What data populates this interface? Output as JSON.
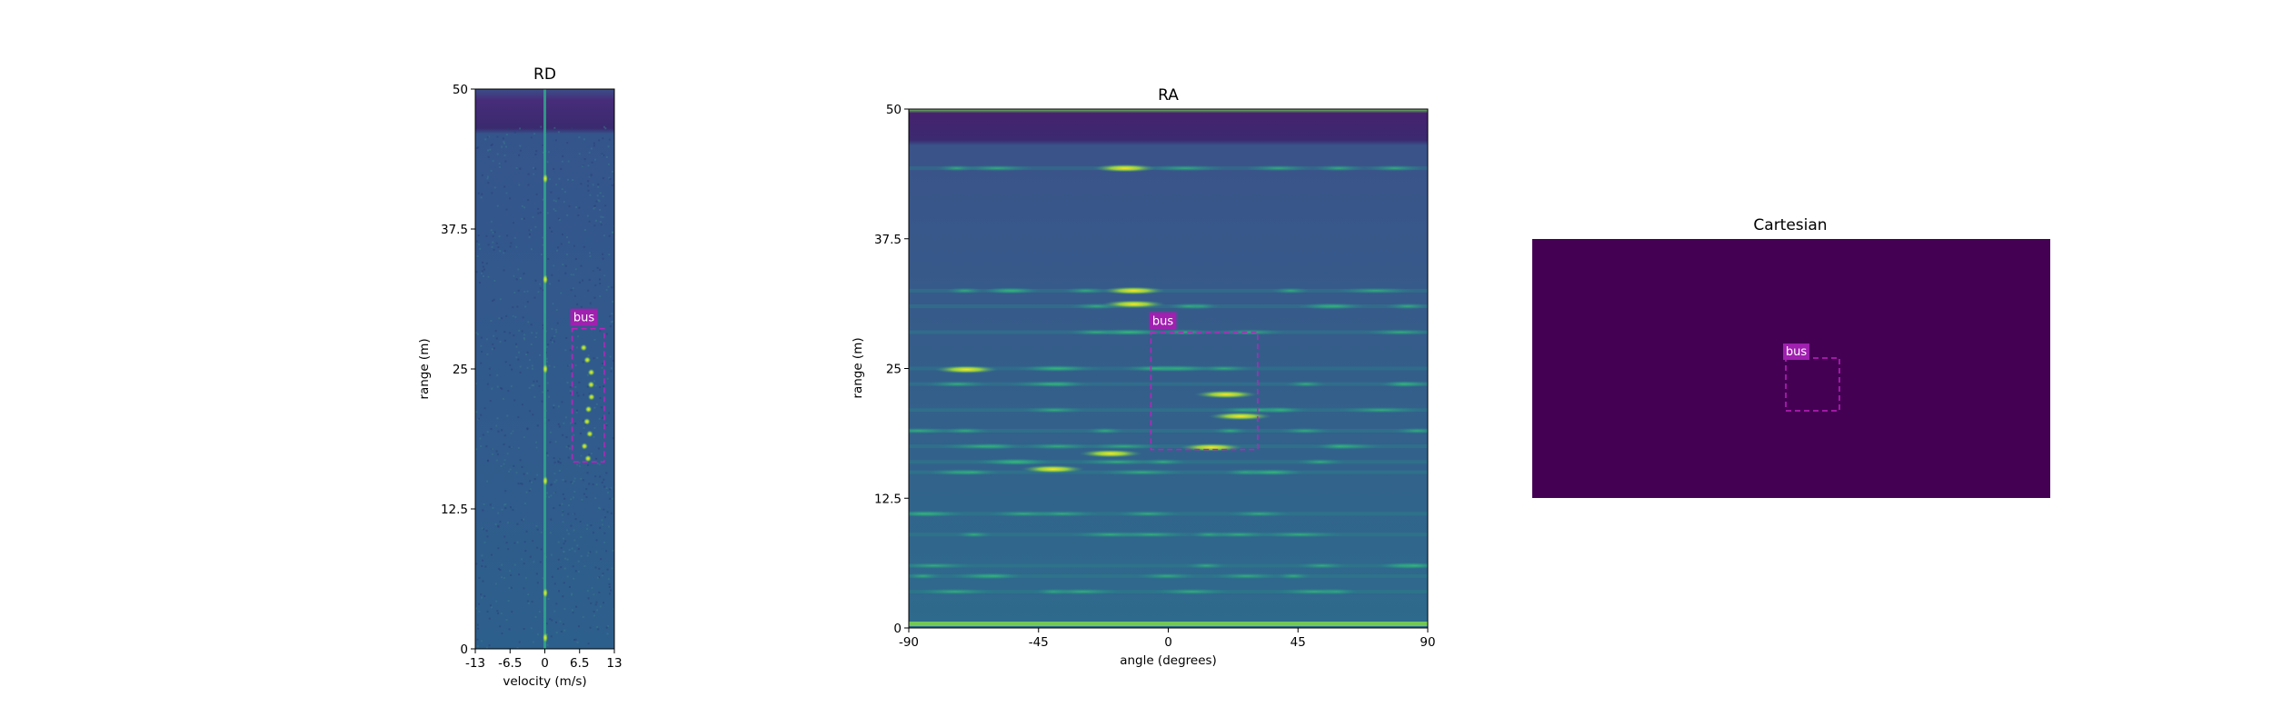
{
  "chart_data": [
    {
      "type": "heatmap",
      "title": "RD",
      "xlabel": "velocity (m/s)",
      "ylabel": "range (m)",
      "xlim": [
        -13,
        13
      ],
      "ylim": [
        0,
        50
      ],
      "xticks": [
        "-13",
        "-6.5",
        "0",
        "6.5",
        "13"
      ],
      "yticks": [
        "0",
        "12.5",
        "25",
        "37.5",
        "50"
      ],
      "annotations": [
        {
          "label": "bus",
          "x0": 5.1,
          "x1": 11.1,
          "y0": 16.7,
          "y1": 28.6
        }
      ]
    },
    {
      "type": "heatmap",
      "title": "RA",
      "xlabel": "angle (degrees)",
      "ylabel": "range (m)",
      "xlim": [
        -90,
        90
      ],
      "ylim": [
        0,
        50
      ],
      "xticks": [
        "-90",
        "-45",
        "0",
        "45",
        "90"
      ],
      "yticks": [
        "0",
        "12.5",
        "25",
        "37.5",
        "50"
      ],
      "annotations": [
        {
          "label": "bus",
          "x0": -6,
          "x1": 31,
          "y0": 17.2,
          "y1": 28.5
        }
      ]
    },
    {
      "type": "heatmap",
      "title": "Cartesian",
      "xlabel": "",
      "ylabel": "",
      "annotations": [
        {
          "label": "bus"
        }
      ]
    }
  ],
  "colors": {
    "viridis_dark": "#440154",
    "field_blue": "#30588c",
    "annotation_magenta": "#c020c0",
    "label_bg": "#a020b0"
  }
}
